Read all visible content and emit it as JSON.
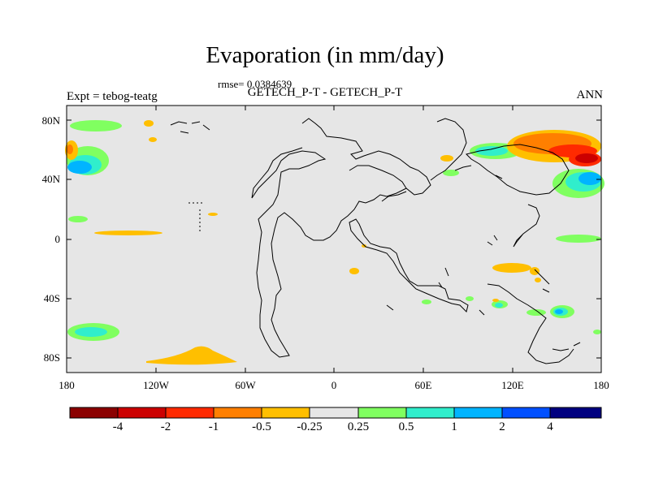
{
  "title": "Evaporation (in mm/day)",
  "rmse_text": "rmse= 0.0384639",
  "center_label": "GETECH_P-T - GETECH_P-T",
  "left_label": "Expt = tebog-teatg",
  "right_label": "ANN",
  "y_ticks": [
    "80N",
    "40N",
    "0",
    "40S",
    "80S"
  ],
  "x_ticks": [
    "180",
    "120W",
    "60W",
    "0",
    "60E",
    "120E",
    "180"
  ],
  "colorbar": {
    "colors": [
      "#8b0000",
      "#cc0000",
      "#ff2a00",
      "#ff7f00",
      "#ffbf00",
      "#e6e6e6",
      "#80ff60",
      "#30eecc",
      "#00b4ff",
      "#0050ff",
      "#000080"
    ],
    "labels": [
      "-4",
      "-2",
      "-1",
      "-0.5",
      "-0.25",
      "0.25",
      "0.5",
      "1",
      "2",
      "4"
    ]
  },
  "map_background": "#e6e6e6"
}
